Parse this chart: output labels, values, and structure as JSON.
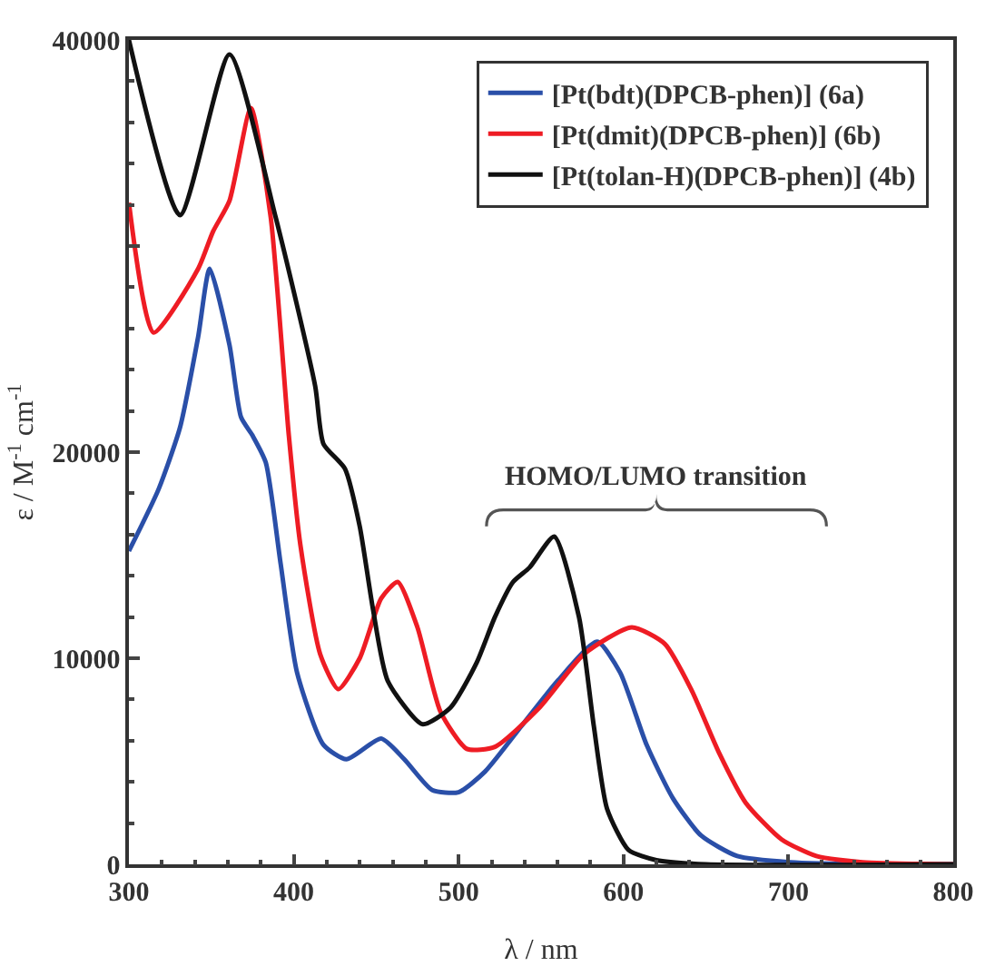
{
  "chart_data": {
    "type": "line",
    "xlabel": "λ / nm",
    "ylabel": "ε / M$^{-1}$ cm$^{-1}$",
    "xlim": [
      300,
      800
    ],
    "xticks": [
      300,
      400,
      500,
      600,
      700,
      800
    ],
    "ylim": [
      0,
      40000
    ],
    "yticks": [
      0,
      10000,
      20000,
      {
        "value": 30000,
        "label": null
      },
      40000
    ],
    "grid": false,
    "legend": "top right",
    "line_style": "solid",
    "marker": "none",
    "annotations": [
      "HOMO/LUMO transition"
    ],
    "series": [
      {
        "name": "[Pt(bdt)(DPCB-phen)] (6a)",
        "color": "#2a4fa8",
        "x": [
          300,
          318,
          331,
          342,
          349,
          361,
          368,
          375,
          383,
          392,
          402,
          418,
          432,
          453,
          467,
          484,
          500,
          516,
          538,
          560,
          584,
          598,
          614,
          630,
          647,
          669,
          701,
          750,
          800
        ],
        "values": [
          15200,
          18200,
          21200,
          25600,
          28900,
          25200,
          21700,
          20800,
          19500,
          14600,
          9300,
          5800,
          5100,
          6100,
          5100,
          3600,
          3500,
          4500,
          6700,
          8900,
          10800,
          9300,
          5800,
          3200,
          1400,
          400,
          100,
          0,
          0
        ]
      },
      {
        "name": "[Pt(dmit)(DPCB-phen)] (6b)",
        "color": "#ee1c24",
        "x": [
          300,
          315,
          342,
          351,
          361,
          374,
          386,
          397,
          404,
          416,
          427,
          440,
          453,
          463,
          475,
          489,
          505,
          522,
          549,
          576,
          605,
          625,
          641,
          658,
          674,
          696,
          717,
          745,
          800
        ],
        "values": [
          32100,
          25800,
          28900,
          30700,
          32200,
          36700,
          31400,
          20800,
          15500,
          10200,
          8500,
          10000,
          12900,
          13700,
          11500,
          7400,
          5600,
          5700,
          7600,
          10200,
          11500,
          10700,
          8500,
          5400,
          3000,
          1200,
          400,
          100,
          0
        ]
      },
      {
        "name": "[Pt(tolan-H)(DPCB-phen)] (4b)",
        "color": "#111111",
        "x": [
          300,
          331,
          361,
          389,
          413,
          418,
          431,
          440,
          448,
          457,
          478,
          495,
          511,
          522,
          533,
          543,
          558,
          573,
          582,
          590,
          603,
          620,
          650,
          800
        ],
        "values": [
          40000,
          31500,
          39300,
          31400,
          23200,
          20400,
          19200,
          16400,
          12400,
          8900,
          6800,
          7600,
          9800,
          12000,
          13700,
          14400,
          15900,
          12000,
          6700,
          2700,
          700,
          200,
          0,
          0
        ]
      }
    ]
  }
}
